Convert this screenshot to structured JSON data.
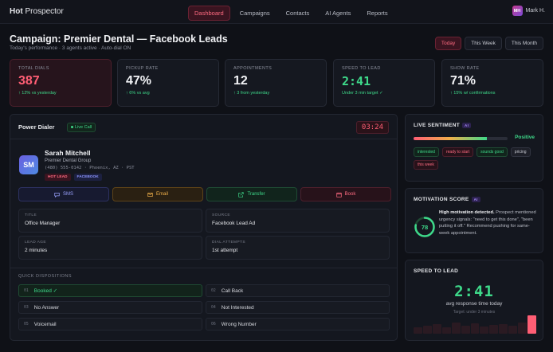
{
  "app": {
    "brand_bold": "Hot",
    "brand_rest": " Prospector"
  },
  "nav": {
    "tabs": [
      "Dashboard",
      "Campaigns",
      "Contacts",
      "AI Agents",
      "Reports"
    ],
    "active": 0
  },
  "user": {
    "initials": "MH",
    "name": "Mark H."
  },
  "page": {
    "title": "Campaign: Premier Dental — Facebook Leads",
    "subtitle": "Today's performance · 3 agents active · Auto-dial ON"
  },
  "range": {
    "options": [
      "Today",
      "This Week",
      "This Month"
    ],
    "active": 0
  },
  "kpis": [
    {
      "label": "TOTAL DIALS",
      "value": "387",
      "delta": "↑ 12% vs yesterday"
    },
    {
      "label": "PICKUP RATE",
      "value": "47%",
      "delta": "↑ 6% vs avg"
    },
    {
      "label": "APPOINTMENTS",
      "value": "12",
      "delta": "↑ 3 from yesterday"
    },
    {
      "label": "SPEED TO LEAD",
      "value": "2:41",
      "delta": "Under 3 min target ✓"
    },
    {
      "label": "SHOW RATE",
      "value": "71%",
      "delta": "↑ 15% w/ confirmations"
    }
  ],
  "dialer": {
    "title": "Power Dialer",
    "live_label": "Live Call",
    "timer": "03:24",
    "contact": {
      "initials": "SM",
      "name": "Sarah Mitchell",
      "company": "Premier Dental Group",
      "phone": "(480) 555-0142 · Phoenix, AZ · PST",
      "tags": [
        "HOT LEAD",
        "FACEBOOK"
      ]
    },
    "actions": [
      "SMS",
      "Email",
      "Transfer",
      "Book"
    ],
    "fields": [
      {
        "label": "TITLE",
        "value": "Office Manager"
      },
      {
        "label": "SOURCE",
        "value": "Facebook Lead Ad"
      },
      {
        "label": "LEAD AGE",
        "value": "2 minutes"
      },
      {
        "label": "DIAL ATTEMPTS",
        "value": "1st attempt"
      }
    ],
    "dispositions_label": "QUICK DISPOSITIONS",
    "dispositions": [
      {
        "key": "01",
        "label": "Booked ✓"
      },
      {
        "key": "02",
        "label": "Call Back"
      },
      {
        "key": "03",
        "label": "No Answer"
      },
      {
        "key": "04",
        "label": "Not Interested"
      },
      {
        "key": "05",
        "label": "Voicemail"
      },
      {
        "key": "06",
        "label": "Wrong Number"
      }
    ]
  },
  "sentiment": {
    "title": "LIVE SENTIMENT",
    "ai_badge": "AI",
    "label": "Positive",
    "level": 0.78,
    "chips": [
      {
        "text": "interested",
        "tone": "g"
      },
      {
        "text": "ready to start",
        "tone": "r"
      },
      {
        "text": "sounds good",
        "tone": "g"
      },
      {
        "text": "pricing",
        "tone": "n"
      },
      {
        "text": "this week",
        "tone": "r"
      }
    ]
  },
  "motivation": {
    "title": "MOTIVATION SCORE",
    "ai_badge": "AI",
    "score": "78",
    "score_fraction": 0.78,
    "headline": "High motivation detected.",
    "body": " Prospect mentioned urgency signals: \"need to get this done\", \"been putting it off.\" Recommend pushing for same-week appointment."
  },
  "speed": {
    "title": "SPEED TO LEAD",
    "value": "2:41",
    "sub": "avg response time today",
    "target": "Target: under 3 minutes",
    "bars": [
      0.3,
      0.38,
      0.45,
      0.32,
      0.55,
      0.4,
      0.5,
      0.35,
      0.42,
      0.48,
      0.38,
      0.52,
      0.9
    ]
  },
  "colors": {
    "accent": "#ff5e74",
    "positive": "#3ed98a",
    "warn": "#f0b04a",
    "info": "#9aa2ff"
  }
}
